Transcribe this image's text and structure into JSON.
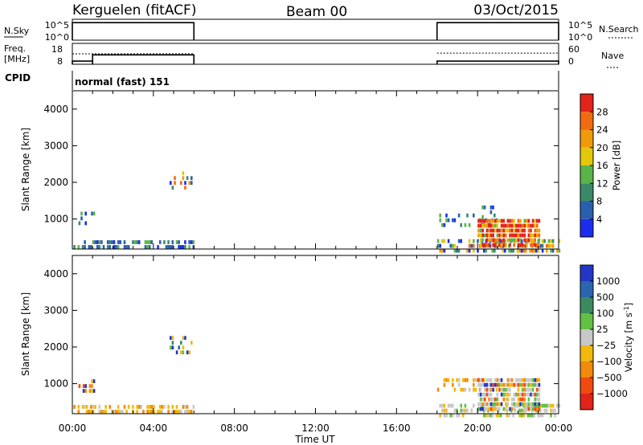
{
  "header": {
    "radar": "Kerguelen (fitACF)",
    "beam": "Beam 00",
    "date": "03/Oct/2015"
  },
  "top_panels": {
    "nsky_label": "N.Sky",
    "nsearch_label": "N.Search",
    "nsky_ticks": [
      "10^5",
      "10^0"
    ],
    "freq_label_1": "Freq.",
    "freq_label_2": "[MHz]",
    "freq_ticks": [
      "18",
      "8"
    ],
    "nave_label": "Nave",
    "nave_ticks": [
      "60",
      "0"
    ],
    "cpid_label": "CPID",
    "cpid_text": "normal (fast) 151"
  },
  "axes": {
    "ylabel": "Slant Range [km]",
    "xlabel": "Time UT",
    "y_ticks": [
      "1000",
      "2000",
      "3000",
      "4000"
    ],
    "x_ticks": [
      "00:00",
      "04:00",
      "08:00",
      "12:00",
      "16:00",
      "20:00",
      "00:00"
    ]
  },
  "power_colorbar": {
    "label": "Power [dB]",
    "ticks": [
      "4",
      "8",
      "12",
      "16",
      "20",
      "24",
      "28"
    ],
    "colors": [
      "#1c2df0",
      "#2a5fb0",
      "#3a8a6a",
      "#5ab548",
      "#e3c80a",
      "#f29b08",
      "#f26a10",
      "#e2231a"
    ]
  },
  "velocity_colorbar": {
    "label_main": "Velocity  [m s",
    "label_sup": "-1",
    "label_end": "]",
    "ticks": [
      "1000",
      "500",
      "100",
      "25",
      "−25",
      "−100",
      "−500",
      "−1000"
    ],
    "colors": [
      "#2436c8",
      "#2a65b0",
      "#3c8a60",
      "#62c043",
      "#c8c8c8",
      "#f2b80c",
      "#f28a0c",
      "#f24a10",
      "#e2231a"
    ]
  },
  "chart_data": {
    "type": "heatmap",
    "time_range_hours": [
      0,
      24
    ],
    "slant_range_km": [
      180,
      4500
    ],
    "operating_intervals_hours": [
      [
        0,
        6
      ],
      [
        18,
        24
      ]
    ],
    "nsky_log": 5,
    "freq_mhz": [
      [
        0,
        1,
        9.5
      ],
      [
        1,
        6,
        12.5
      ],
      [
        18,
        24,
        9.5
      ]
    ],
    "nave": [
      [
        0,
        6,
        30
      ],
      [
        18,
        24,
        32
      ]
    ],
    "power_features": [
      {
        "t0": 0.05,
        "t1": 6.0,
        "r0": 180,
        "r1": 420,
        "level": "low",
        "density": 0.55
      },
      {
        "t0": 0.3,
        "t1": 1.1,
        "r0": 850,
        "r1": 1200,
        "level": "low",
        "density": 0.35
      },
      {
        "t0": 4.8,
        "t1": 5.9,
        "r0": 1850,
        "r1": 2300,
        "level": "mixed",
        "density": 0.3
      },
      {
        "t0": 18.0,
        "t1": 24.0,
        "r0": 180,
        "r1": 450,
        "level": "mixed",
        "density": 0.55
      },
      {
        "t0": 18.0,
        "t1": 21.0,
        "r0": 850,
        "r1": 1150,
        "level": "low",
        "density": 0.35
      },
      {
        "t0": 20.0,
        "t1": 23.0,
        "r0": 250,
        "r1": 1000,
        "level": "high",
        "density": 0.85
      },
      {
        "t0": 20.2,
        "t1": 20.8,
        "r0": 1100,
        "r1": 1500,
        "level": "low",
        "density": 0.3
      }
    ],
    "velocity_features": [
      {
        "t0": 0.05,
        "t1": 6.0,
        "r0": 180,
        "r1": 420,
        "level": "slow-negative",
        "density": 0.55
      },
      {
        "t0": 0.3,
        "t1": 1.1,
        "r0": 850,
        "r1": 1250,
        "level": "negative",
        "density": 0.3
      },
      {
        "t0": 4.8,
        "t1": 5.9,
        "r0": 1850,
        "r1": 2300,
        "level": "mixed",
        "density": 0.3
      },
      {
        "t0": 18.0,
        "t1": 24.0,
        "r0": 180,
        "r1": 450,
        "level": "slow",
        "density": 0.5
      },
      {
        "t0": 18.0,
        "t1": 21.0,
        "r0": 850,
        "r1": 1150,
        "level": "slow-negative",
        "density": 0.35
      },
      {
        "t0": 20.0,
        "t1": 23.0,
        "r0": 300,
        "r1": 1150,
        "level": "ground",
        "density": 0.8
      }
    ]
  }
}
